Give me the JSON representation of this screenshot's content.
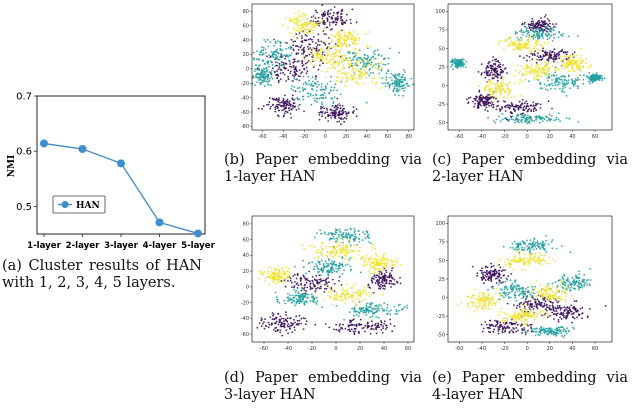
{
  "colors": {
    "purple": "#3b0f5c",
    "teal": "#21a0a0",
    "yellow": "#f0e12c",
    "line": "#4a90c8",
    "marker": "#3e8fd0"
  },
  "captions": {
    "a": "(a) Cluster results of HAN with 1, 2, 3, 4, 5 layers.",
    "b": "(b) Paper embedding via 1-layer HAN",
    "c": "(c) Paper embedding via 2-layer HAN",
    "d": "(d) Paper embedding via 3-layer HAN",
    "e": "(e) Paper embedding via 4-layer HAN"
  },
  "chart_data": [
    {
      "type": "line",
      "ylabel": "NMI",
      "categories": [
        "1-layer",
        "2-layer",
        "3-layer",
        "4-layer",
        "5-layer"
      ],
      "series": [
        {
          "name": "HAN",
          "values": [
            0.614,
            0.604,
            0.578,
            0.471,
            0.451
          ]
        }
      ],
      "ylim": [
        0.45,
        0.7
      ],
      "yticks": [
        "0.5",
        "0.6",
        "0.7"
      ],
      "legend": "bottom-left",
      "grid": false
    },
    {
      "type": "scatter",
      "panel": "b",
      "xticks": [
        "-60",
        "-40",
        "-20",
        "0",
        "20",
        "40",
        "60",
        "80"
      ],
      "yticks": [
        "-80",
        "-60",
        "-40",
        "-20",
        "0",
        "20",
        "40",
        "60",
        "80"
      ],
      "xlim": [
        -70,
        85
      ],
      "ylim": [
        -85,
        90
      ],
      "groups": [
        {
          "color": "purple",
          "clusters": [
            [
              -35,
              0,
              20,
              18
            ],
            [
              -15,
              30,
              20,
              20
            ],
            [
              5,
              70,
              15,
              12
            ],
            [
              -40,
              -50,
              15,
              12
            ],
            [
              10,
              -60,
              12,
              10
            ]
          ]
        },
        {
          "color": "teal",
          "clusters": [
            [
              -50,
              20,
              15,
              15
            ],
            [
              -10,
              -30,
              18,
              18
            ],
            [
              40,
              10,
              20,
              15
            ],
            [
              70,
              -20,
              10,
              12
            ],
            [
              -60,
              -10,
              10,
              10
            ]
          ]
        },
        {
          "color": "yellow",
          "clusters": [
            [
              5,
              15,
              18,
              14
            ],
            [
              30,
              -5,
              18,
              16
            ],
            [
              -20,
              60,
              12,
              12
            ],
            [
              20,
              40,
              14,
              12
            ]
          ]
        }
      ]
    },
    {
      "type": "scatter",
      "panel": "c",
      "xticks": [
        "-60",
        "-40",
        "-20",
        "0",
        "20",
        "40",
        "60"
      ],
      "yticks": [
        "-50",
        "-25",
        "0",
        "25",
        "50",
        "75",
        "100"
      ],
      "xlim": [
        -70,
        75
      ],
      "ylim": [
        -60,
        110
      ],
      "groups": [
        {
          "color": "purple",
          "clusters": [
            [
              -30,
              20,
              8,
              10
            ],
            [
              -10,
              -30,
              22,
              10
            ],
            [
              20,
              40,
              15,
              8
            ],
            [
              -40,
              -20,
              10,
              8
            ],
            [
              10,
              80,
              10,
              8
            ]
          ]
        },
        {
          "color": "teal",
          "clusters": [
            [
              10,
              70,
              20,
              8
            ],
            [
              30,
              5,
              18,
              10
            ],
            [
              0,
              -45,
              25,
              5
            ],
            [
              -60,
              30,
              5,
              5
            ],
            [
              60,
              10,
              5,
              5
            ]
          ]
        },
        {
          "color": "yellow",
          "clusters": [
            [
              -5,
              55,
              15,
              8
            ],
            [
              10,
              20,
              15,
              10
            ],
            [
              -25,
              -5,
              12,
              10
            ],
            [
              40,
              30,
              10,
              10
            ]
          ]
        }
      ]
    },
    {
      "type": "scatter",
      "panel": "d",
      "xticks": [
        "-60",
        "-40",
        "-20",
        "0",
        "20",
        "40",
        "60"
      ],
      "yticks": [
        "-60",
        "-40",
        "-20",
        "0",
        "20",
        "40",
        "60",
        "80"
      ],
      "xlim": [
        -70,
        65
      ],
      "ylim": [
        -70,
        90
      ],
      "groups": [
        {
          "color": "purple",
          "clusters": [
            [
              -20,
              5,
              18,
              10
            ],
            [
              20,
              -50,
              20,
              8
            ],
            [
              -45,
              -45,
              15,
              10
            ],
            [
              40,
              10,
              10,
              10
            ]
          ]
        },
        {
          "color": "teal",
          "clusters": [
            [
              10,
              65,
              18,
              8
            ],
            [
              30,
              -30,
              20,
              8
            ],
            [
              -5,
              25,
              15,
              8
            ],
            [
              -30,
              -15,
              12,
              8
            ]
          ]
        },
        {
          "color": "yellow",
          "clusters": [
            [
              0,
              45,
              20,
              8
            ],
            [
              10,
              -10,
              18,
              10
            ],
            [
              -50,
              15,
              10,
              8
            ],
            [
              35,
              30,
              12,
              10
            ]
          ]
        }
      ]
    },
    {
      "type": "scatter",
      "panel": "e",
      "xticks": [
        "-60",
        "-40",
        "-20",
        "0",
        "20",
        "40",
        "60"
      ],
      "yticks": [
        "-50",
        "-25",
        "0",
        "25",
        "50",
        "75",
        "100"
      ],
      "xlim": [
        -70,
        75
      ],
      "ylim": [
        -60,
        110
      ],
      "groups": [
        {
          "color": "purple",
          "clusters": [
            [
              -20,
              -40,
              20,
              8
            ],
            [
              10,
              -10,
              18,
              10
            ],
            [
              -30,
              30,
              10,
              10
            ],
            [
              35,
              -20,
              15,
              10
            ]
          ]
        },
        {
          "color": "teal",
          "clusters": [
            [
              5,
              70,
              18,
              8
            ],
            [
              -10,
              10,
              18,
              10
            ],
            [
              40,
              20,
              15,
              10
            ],
            [
              20,
              -45,
              15,
              5
            ]
          ]
        },
        {
          "color": "yellow",
          "clusters": [
            [
              0,
              50,
              18,
              8
            ],
            [
              20,
              5,
              15,
              10
            ],
            [
              -40,
              -5,
              12,
              10
            ],
            [
              -5,
              -25,
              15,
              8
            ]
          ]
        }
      ]
    }
  ]
}
